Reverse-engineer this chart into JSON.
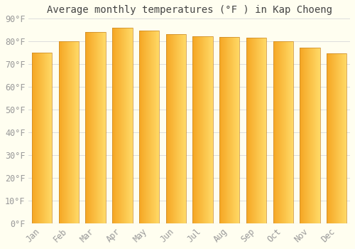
{
  "title": "Average monthly temperatures (°F ) in Kap Choeng",
  "months": [
    "Jan",
    "Feb",
    "Mar",
    "Apr",
    "May",
    "Jun",
    "Jul",
    "Aug",
    "Sep",
    "Oct",
    "Nov",
    "Dec"
  ],
  "values": [
    75.2,
    80.1,
    84.0,
    86.0,
    84.7,
    83.3,
    82.4,
    81.9,
    81.5,
    80.1,
    77.2,
    74.8
  ],
  "bar_color_left": "#F5A623",
  "bar_color_right": "#FFD966",
  "bar_outline_color": "#C8882A",
  "background_color": "#FFFEF0",
  "grid_color": "#DDDDDD",
  "text_color": "#999999",
  "title_color": "#444444",
  "ylim": [
    0,
    90
  ],
  "yticks": [
    0,
    10,
    20,
    30,
    40,
    50,
    60,
    70,
    80,
    90
  ],
  "title_fontsize": 10,
  "tick_fontsize": 8.5,
  "bar_width": 0.75
}
